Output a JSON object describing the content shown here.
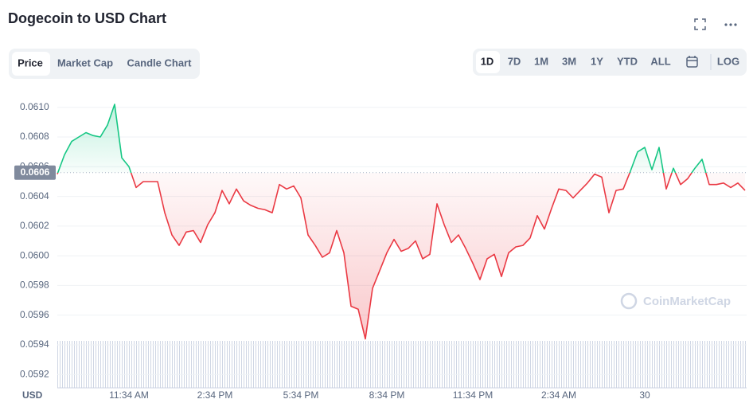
{
  "tabs": [
    "Price",
    "Market Cap",
    "Candle Chart"
  ],
  "ranges": [
    "1D",
    "7D",
    "1M",
    "3M",
    "1Y",
    "YTD",
    "ALL"
  ],
  "log_button": "LOG",
  "watermark": "CoinMarketCap",
  "chart_data": {
    "type": "line",
    "title": "Dogecoin to USD Chart",
    "ylabel": "USD",
    "color_up": "#16c784",
    "color_down": "#ea3943",
    "grid": true,
    "ylim": [
      0.05911,
      0.06109
    ],
    "yticks": [
      {
        "value": 0.061,
        "label": "0.0610"
      },
      0.0608,
      0.0606,
      0.0604,
      0.0602,
      {
        "value": 0.06,
        "label": "0.0600"
      },
      0.0598,
      0.0596,
      0.0594,
      0.0592
    ],
    "reference": {
      "value": 0.06056,
      "label": "0.0606"
    },
    "categories": [
      null,
      null,
      null,
      null,
      null,
      null,
      null,
      null,
      null,
      null,
      "11:34 AM",
      null,
      null,
      null,
      null,
      null,
      null,
      null,
      null,
      null,
      null,
      null,
      "2:34 PM",
      null,
      null,
      null,
      null,
      null,
      null,
      null,
      null,
      null,
      null,
      null,
      "5:34 PM",
      null,
      null,
      null,
      null,
      null,
      null,
      null,
      null,
      null,
      null,
      null,
      "8:34 PM",
      null,
      null,
      null,
      null,
      null,
      null,
      null,
      null,
      null,
      null,
      null,
      "11:34 PM",
      null,
      null,
      null,
      null,
      null,
      null,
      null,
      null,
      null,
      null,
      null,
      "2:34 AM",
      null,
      null,
      null,
      null,
      null,
      null,
      null,
      null,
      null,
      null,
      null,
      "30",
      null,
      null,
      null,
      null,
      null,
      null,
      null,
      null,
      null,
      null,
      null,
      null,
      null,
      null
    ],
    "values": [
      0.06055,
      0.06068,
      0.06077,
      0.0608,
      0.06083,
      0.06081,
      0.0608,
      0.06088,
      0.06102,
      0.06066,
      0.0606,
      0.06046,
      0.0605,
      0.0605,
      0.0605,
      0.06029,
      0.06014,
      0.06007,
      0.06016,
      0.06017,
      0.06009,
      0.06021,
      0.06029,
      0.06044,
      0.06035,
      0.06045,
      0.06037,
      0.06034,
      0.06032,
      0.06031,
      0.06029,
      0.06048,
      0.06045,
      0.06047,
      0.06039,
      0.06014,
      0.06007,
      0.05999,
      0.06002,
      0.06017,
      0.06002,
      0.05966,
      0.05964,
      0.05944,
      0.05978,
      0.0599,
      0.06002,
      0.06011,
      0.06003,
      0.06005,
      0.0601,
      0.05998,
      0.06001,
      0.06035,
      0.06021,
      0.06009,
      0.06014,
      0.06005,
      0.05995,
      0.05984,
      0.05998,
      0.06001,
      0.05986,
      0.06002,
      0.06006,
      0.06007,
      0.06012,
      0.06027,
      0.06018,
      0.06032,
      0.06045,
      0.06044,
      0.06039,
      0.06044,
      0.06049,
      0.06055,
      0.06053,
      0.06029,
      0.06044,
      0.06045,
      0.06057,
      0.0607,
      0.06073,
      0.06058,
      0.06073,
      0.06045,
      0.06059,
      0.06048,
      0.06052,
      0.06059,
      0.06065,
      0.06048,
      0.06048,
      0.06049,
      0.06046,
      0.06049,
      0.06044
    ]
  }
}
